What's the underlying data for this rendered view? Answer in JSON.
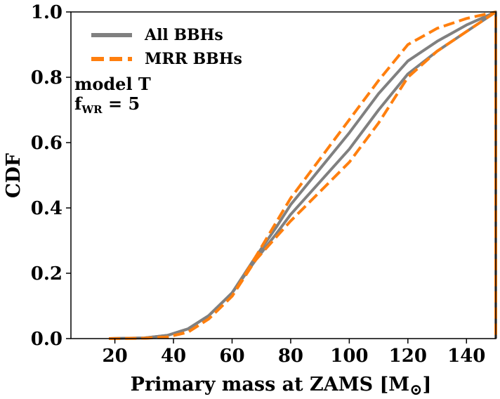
{
  "chart_data": {
    "type": "line",
    "xlabel": "Primary mass at ZAMS [M",
    "xlabel_sub": "⊙",
    "xlabel_close": "]",
    "ylabel": "CDF",
    "xlim": [
      5,
      150
    ],
    "ylim": [
      0,
      1
    ],
    "xticks": [
      "20",
      "40",
      "60",
      "80",
      "100",
      "120",
      "140"
    ],
    "yticks": [
      "0.0",
      "0.2",
      "0.4",
      "0.6",
      "0.8",
      "1.0"
    ],
    "legend_position": "upper-left",
    "annotation": {
      "line1": "model T",
      "line2_base": "f",
      "line2_sub": "WR",
      "line2_rest": " = 5"
    },
    "series": [
      {
        "name": "All BBHs",
        "color": "#808080",
        "style": "solid",
        "width": 4,
        "x": [
          18,
          30,
          38,
          45,
          52,
          60,
          68,
          75,
          80,
          90,
          100,
          110,
          120,
          130,
          140,
          150,
          150
        ],
        "y": [
          0.0,
          0.002,
          0.01,
          0.03,
          0.07,
          0.14,
          0.24,
          0.32,
          0.38,
          0.48,
          0.58,
          0.7,
          0.81,
          0.88,
          0.94,
          1.0,
          0.0
        ]
      },
      {
        "name": "",
        "color": "#808080",
        "style": "solid",
        "width": 4,
        "x": [
          18,
          30,
          38,
          45,
          52,
          60,
          68,
          75,
          80,
          90,
          100,
          110,
          120,
          130,
          140,
          150
        ],
        "y": [
          0.0,
          0.002,
          0.01,
          0.03,
          0.07,
          0.14,
          0.25,
          0.34,
          0.41,
          0.52,
          0.63,
          0.75,
          0.85,
          0.91,
          0.96,
          1.0
        ]
      },
      {
        "name": "MRR BBHs",
        "color": "#ff7f0e",
        "style": "dashed",
        "width": 4,
        "x": [
          18,
          30,
          38,
          45,
          52,
          60,
          68,
          76,
          80,
          90,
          100,
          110,
          120,
          130,
          140,
          150,
          150
        ],
        "y": [
          0.0,
          0.001,
          0.005,
          0.02,
          0.06,
          0.13,
          0.24,
          0.32,
          0.36,
          0.45,
          0.54,
          0.66,
          0.8,
          0.88,
          0.94,
          1.0,
          0.0
        ]
      },
      {
        "name": "",
        "color": "#ff7f0e",
        "style": "dashed",
        "width": 4,
        "x": [
          18,
          30,
          38,
          45,
          52,
          60,
          68,
          76,
          80,
          90,
          100,
          110,
          120,
          130,
          140,
          150
        ],
        "y": [
          0.0,
          0.001,
          0.005,
          0.02,
          0.06,
          0.13,
          0.25,
          0.37,
          0.43,
          0.55,
          0.67,
          0.79,
          0.9,
          0.95,
          0.98,
          1.0
        ]
      }
    ]
  }
}
